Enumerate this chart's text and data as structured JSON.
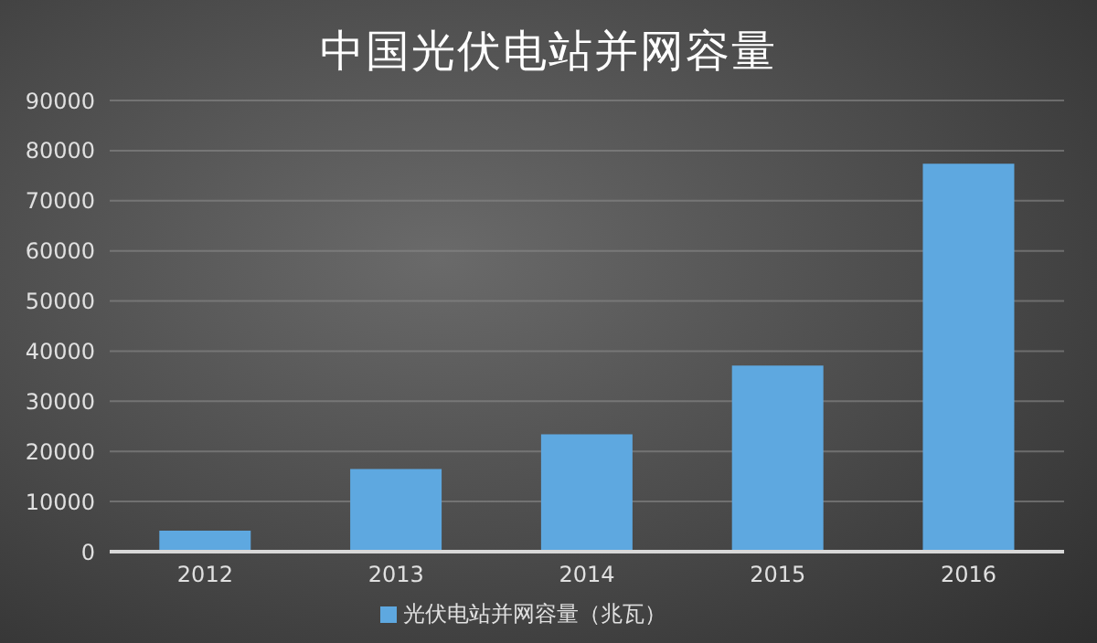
{
  "chart_data": {
    "type": "bar",
    "title": "中国光伏电站并网容量",
    "categories": [
      "2012",
      "2013",
      "2014",
      "2015",
      "2016"
    ],
    "series": [
      {
        "name": "光伏电站并网容量（兆瓦）",
        "color": "#5ea8e0",
        "values": [
          4200,
          16500,
          23400,
          37100,
          77400
        ]
      }
    ],
    "ylim": [
      0,
      90000
    ],
    "yticks": [
      0,
      10000,
      20000,
      30000,
      40000,
      50000,
      60000,
      70000,
      80000,
      90000
    ],
    "grid": "y",
    "legend": "bottom"
  }
}
